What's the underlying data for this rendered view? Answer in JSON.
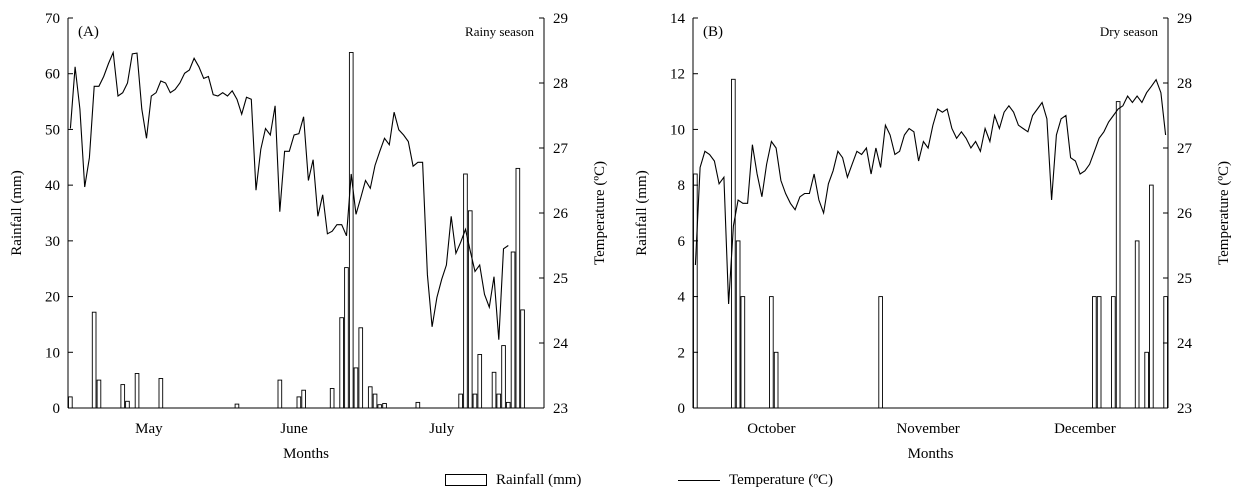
{
  "legend": {
    "rainfall_label": "Rainfall (mm)",
    "temperature_label": "Temperature (ºC)"
  },
  "chart_data": [
    {
      "type": "bar",
      "panel_label": "(A)",
      "season_label": "Rainy season",
      "xlabel": "Months",
      "ylabel": "Rainfall (mm)",
      "y2label": "Temperature (ºC)",
      "month_labels": [
        "May",
        "June",
        "July"
      ],
      "month_label_days": [
        17.5,
        48,
        79
      ],
      "ylim": [
        0,
        70
      ],
      "yticks": [
        0,
        10,
        20,
        30,
        40,
        50,
        60,
        70
      ],
      "y2lim": [
        23,
        29
      ],
      "y2ticks": [
        23,
        24,
        25,
        26,
        27,
        28,
        29
      ],
      "days": 100,
      "grid": false,
      "rainfall": [
        {
          "day": 1,
          "value": 2
        },
        {
          "day": 6,
          "value": 17.2
        },
        {
          "day": 7,
          "value": 5
        },
        {
          "day": 12,
          "value": 4.2
        },
        {
          "day": 13,
          "value": 1.2
        },
        {
          "day": 15,
          "value": 6.2
        },
        {
          "day": 20,
          "value": 5.3
        },
        {
          "day": 36,
          "value": 0.7
        },
        {
          "day": 45,
          "value": 5
        },
        {
          "day": 49,
          "value": 2
        },
        {
          "day": 50,
          "value": 3.2
        },
        {
          "day": 56,
          "value": 3.5
        },
        {
          "day": 58,
          "value": 16.2
        },
        {
          "day": 59,
          "value": 25.2
        },
        {
          "day": 60,
          "value": 63.8
        },
        {
          "day": 61,
          "value": 7.2
        },
        {
          "day": 62,
          "value": 14.4
        },
        {
          "day": 64,
          "value": 3.8
        },
        {
          "day": 65,
          "value": 2.5
        },
        {
          "day": 66,
          "value": 0.6
        },
        {
          "day": 67,
          "value": 0.8
        },
        {
          "day": 74,
          "value": 1
        },
        {
          "day": 83,
          "value": 2.5
        },
        {
          "day": 84,
          "value": 42
        },
        {
          "day": 85,
          "value": 35.4
        },
        {
          "day": 86,
          "value": 2.5
        },
        {
          "day": 87,
          "value": 9.6
        },
        {
          "day": 90,
          "value": 6.4
        },
        {
          "day": 91,
          "value": 2.5
        },
        {
          "day": 92,
          "value": 11.2
        },
        {
          "day": 93,
          "value": 1
        },
        {
          "day": 94,
          "value": 28
        },
        {
          "day": 95,
          "value": 43
        },
        {
          "day": 96,
          "value": 17.6
        }
      ],
      "temperature": [
        27.3,
        28.25,
        27.6,
        26.4,
        26.85,
        27.95,
        27.95,
        28.1,
        28.3,
        28.47,
        27.8,
        27.85,
        28.0,
        28.45,
        28.46,
        27.6,
        27.15,
        27.8,
        27.85,
        28.03,
        28.0,
        27.85,
        27.9,
        28.0,
        28.15,
        28.2,
        28.38,
        28.25,
        28.07,
        28.1,
        27.82,
        27.8,
        27.85,
        27.8,
        27.88,
        27.75,
        27.52,
        27.78,
        27.75,
        26.35,
        26.98,
        27.3,
        27.2,
        27.65,
        26.02,
        26.95,
        26.95,
        27.2,
        27.22,
        27.48,
        26.5,
        26.82,
        25.95,
        26.28,
        25.68,
        25.72,
        25.82,
        25.82,
        25.65,
        26.6,
        25.98,
        26.23,
        26.5,
        26.38,
        26.73,
        26.95,
        27.15,
        27.05,
        27.55,
        27.28,
        27.2,
        27.1,
        26.72,
        26.78,
        26.78,
        25.05,
        24.25,
        24.7,
        24.98,
        25.2,
        25.95,
        25.38,
        25.55,
        25.75,
        25.42,
        25.1,
        25.2,
        24.75,
        24.55,
        25.02,
        24.05,
        25.45,
        25.5
      ],
      "temperature_start_day": 1
    },
    {
      "type": "bar",
      "panel_label": "(B)",
      "season_label": "Dry season",
      "xlabel": "Months",
      "ylabel": "Rainfall (mm)",
      "y2label": "Temperature (ºC)",
      "month_labels": [
        "October",
        "November",
        "December"
      ],
      "month_label_days": [
        17,
        50,
        83
      ],
      "ylim": [
        0,
        14
      ],
      "yticks": [
        0,
        2,
        4,
        6,
        8,
        10,
        12,
        14
      ],
      "y2lim": [
        23,
        29
      ],
      "y2ticks": [
        23,
        24,
        25,
        26,
        27,
        28,
        29
      ],
      "days": 100,
      "grid": false,
      "rainfall": [
        {
          "day": 1,
          "value": 8.4
        },
        {
          "day": 9,
          "value": 11.8
        },
        {
          "day": 10,
          "value": 6
        },
        {
          "day": 11,
          "value": 4
        },
        {
          "day": 17,
          "value": 4
        },
        {
          "day": 18,
          "value": 2
        },
        {
          "day": 40,
          "value": 4
        },
        {
          "day": 85,
          "value": 4
        },
        {
          "day": 86,
          "value": 4
        },
        {
          "day": 89,
          "value": 4
        },
        {
          "day": 90,
          "value": 11
        },
        {
          "day": 94,
          "value": 6
        },
        {
          "day": 96,
          "value": 2
        },
        {
          "day": 97,
          "value": 8
        },
        {
          "day": 100,
          "value": 4
        }
      ],
      "temperature": [
        25.2,
        26.7,
        26.95,
        26.9,
        26.8,
        26.45,
        26.55,
        24.6,
        25.8,
        26.2,
        26.15,
        26.15,
        27.05,
        26.6,
        26.25,
        26.75,
        27.1,
        27.0,
        26.5,
        26.3,
        26.15,
        26.05,
        26.25,
        26.3,
        26.3,
        26.6,
        26.2,
        26.0,
        26.45,
        26.65,
        26.95,
        26.85,
        26.55,
        26.75,
        26.95,
        26.9,
        27.0,
        26.6,
        27.0,
        26.7,
        27.35,
        27.2,
        26.9,
        26.95,
        27.2,
        27.3,
        27.25,
        26.8,
        27.1,
        27.0,
        27.35,
        27.6,
        27.55,
        27.6,
        27.3,
        27.15,
        27.25,
        27.15,
        27.0,
        27.1,
        26.95,
        27.3,
        27.1,
        27.5,
        27.3,
        27.55,
        27.65,
        27.55,
        27.35,
        27.3,
        27.25,
        27.5,
        27.6,
        27.7,
        27.45,
        26.2,
        27.2,
        27.45,
        27.5,
        26.85,
        26.8,
        26.6,
        26.65,
        26.75,
        26.95,
        27.15,
        27.25,
        27.4,
        27.5,
        27.6,
        27.65,
        27.8,
        27.7,
        27.8,
        27.7,
        27.85,
        27.95,
        28.05,
        27.85,
        27.2
      ],
      "temperature_start_day": 1
    }
  ]
}
